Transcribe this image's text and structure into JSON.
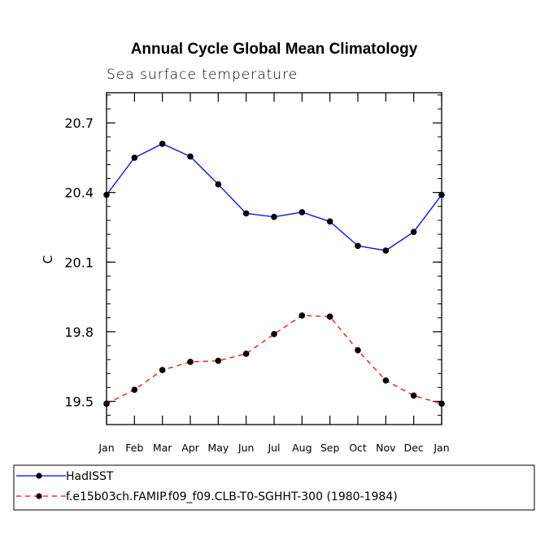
{
  "chart_data": {
    "type": "line",
    "title": "Annual Cycle Global Mean Climatology",
    "subtitle": "Sea surface temperature",
    "xlabel": "",
    "ylabel": "C",
    "ylim": [
      19.4,
      20.83
    ],
    "yticks": [
      "19.5",
      "19.8",
      "20.1",
      "20.4",
      "20.7"
    ],
    "categories": [
      "Jan",
      "Feb",
      "Mar",
      "Apr",
      "May",
      "Jun",
      "Jul",
      "Aug",
      "Sep",
      "Oct",
      "Nov",
      "Dec",
      "Jan"
    ],
    "series": [
      {
        "name": "HadISST",
        "color": "#0000ff",
        "dash": "solid",
        "values": [
          20.39,
          20.55,
          20.61,
          20.555,
          20.435,
          20.31,
          20.295,
          20.315,
          20.275,
          20.17,
          20.15,
          20.23,
          20.39
        ]
      },
      {
        "name": "f.e15b03ch.FAMIP.f09_f09.CLB-T0-SGHHT-300 (1980-1984)",
        "color": "#ff0000",
        "dash": "dashed",
        "values": [
          19.49,
          19.55,
          19.635,
          19.67,
          19.675,
          19.705,
          19.79,
          19.87,
          19.865,
          19.72,
          19.59,
          19.525,
          19.49
        ]
      }
    ],
    "legend_position": "bottom"
  }
}
